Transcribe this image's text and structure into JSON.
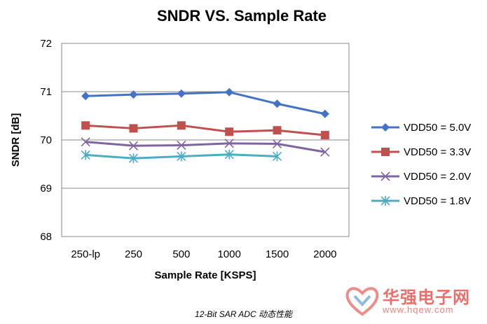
{
  "chart_data": {
    "type": "line",
    "title": "SNDR VS. Sample Rate",
    "xlabel": "Sample Rate [KSPS]",
    "ylabel": "SNDR [dB]",
    "categories": [
      "250-lp",
      "250",
      "500",
      "1000",
      "1500",
      "2000"
    ],
    "ylim": [
      68,
      72
    ],
    "yticks": [
      68,
      69,
      70,
      71,
      72
    ],
    "grid": "horizontal",
    "legend": "right",
    "series": [
      {
        "name": "VDD50 = 5.0V",
        "values": [
          70.91,
          70.94,
          70.96,
          70.99,
          70.75,
          70.54
        ],
        "color": "#4472c4",
        "marker": "diamond"
      },
      {
        "name": "VDD50 = 3.3V",
        "values": [
          70.3,
          70.24,
          70.3,
          70.17,
          70.2,
          70.1
        ],
        "color": "#c0504d",
        "marker": "square"
      },
      {
        "name": "VDD50 = 2.0V",
        "values": [
          69.96,
          69.88,
          69.89,
          69.93,
          69.92,
          69.75
        ],
        "color": "#8064a2",
        "marker": "x"
      },
      {
        "name": "VDD50 = 1.8V",
        "values": [
          69.69,
          69.62,
          69.66,
          69.7,
          69.66,
          null
        ],
        "color": "#4bacc6",
        "marker": "star"
      }
    ]
  },
  "caption": "12-Bit SAR ADC 动态性能",
  "watermark": {
    "name": "华强电子网",
    "url": "www.hqew.com",
    "color": "#e2403a"
  }
}
